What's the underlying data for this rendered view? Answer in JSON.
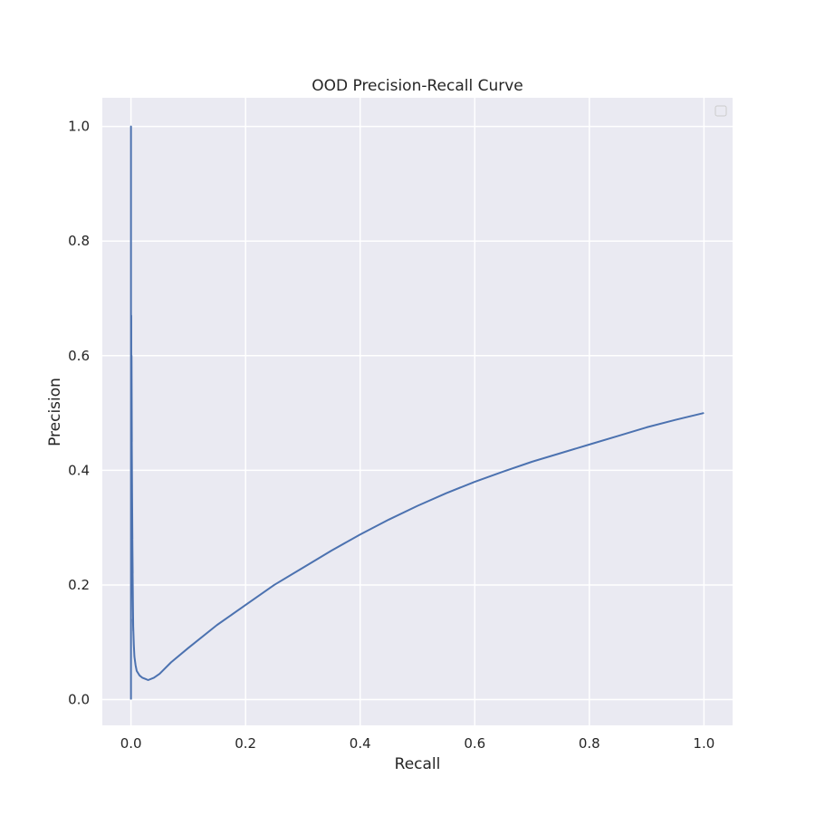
{
  "chart_data": {
    "type": "line",
    "title": "OOD Precision-Recall Curve",
    "xlabel": "Recall",
    "ylabel": "Precision",
    "xlim": [
      -0.05,
      1.05
    ],
    "ylim": [
      -0.045,
      1.05
    ],
    "xticks": [
      0.0,
      0.2,
      0.4,
      0.6,
      0.8,
      1.0
    ],
    "xtick_labels": [
      "0.0",
      "0.2",
      "0.4",
      "0.6",
      "0.8",
      "1.0"
    ],
    "yticks": [
      0.0,
      0.2,
      0.4,
      0.6,
      0.8,
      1.0
    ],
    "ytick_labels": [
      "0.0",
      "0.2",
      "0.4",
      "0.6",
      "0.8",
      "1.0"
    ],
    "grid": true,
    "legend": "top-right (empty)",
    "colors": {
      "line": "#4c72b0",
      "axes_bg": "#eaeaf2",
      "grid": "#ffffff"
    },
    "series": [
      {
        "name": "",
        "x": [
          0.0,
          0.0,
          0.0,
          0.0005,
          0.0005,
          0.001,
          0.0015,
          0.001,
          0.002,
          0.0015,
          0.0025,
          0.002,
          0.003,
          0.0025,
          0.0035,
          0.003,
          0.004,
          0.0035,
          0.005,
          0.006,
          0.008,
          0.01,
          0.015,
          0.02,
          0.025,
          0.03,
          0.04,
          0.05,
          0.07,
          0.1,
          0.15,
          0.2,
          0.25,
          0.3,
          0.35,
          0.4,
          0.45,
          0.5,
          0.55,
          0.6,
          0.65,
          0.7,
          0.75,
          0.8,
          0.85,
          0.9,
          0.95,
          1.0
        ],
        "y": [
          0.0,
          1.0,
          0.6,
          0.67,
          0.55,
          0.6,
          0.45,
          0.52,
          0.35,
          0.42,
          0.28,
          0.33,
          0.22,
          0.26,
          0.16,
          0.2,
          0.12,
          0.14,
          0.095,
          0.075,
          0.06,
          0.05,
          0.042,
          0.038,
          0.036,
          0.034,
          0.038,
          0.045,
          0.065,
          0.09,
          0.13,
          0.165,
          0.2,
          0.23,
          0.26,
          0.288,
          0.314,
          0.338,
          0.36,
          0.38,
          0.398,
          0.415,
          0.43,
          0.445,
          0.46,
          0.475,
          0.488,
          0.5
        ]
      }
    ]
  }
}
